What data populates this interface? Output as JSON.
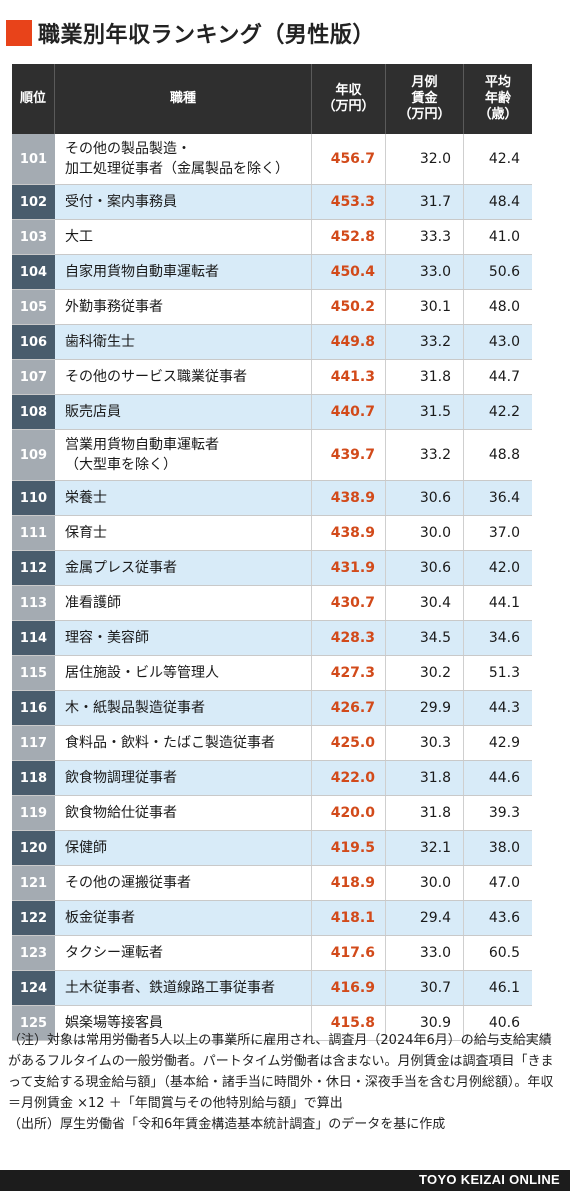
{
  "title": "職業別年収ランキング（男性版）",
  "colors": {
    "accent": "#e8431a",
    "income_text": "#d24a1a",
    "header_bg": "#2f2f2f",
    "rank_dark": "#495c6c",
    "rank_light": "#a4abb2",
    "row_tint": "#d8ebf8"
  },
  "table": {
    "headers": {
      "rank": "順位",
      "job": "職種",
      "income": "年収\n（万円）",
      "wage": "月例\n賃金\n（万円）",
      "age": "平均\n年齢\n（歳）"
    },
    "rows": [
      {
        "rank": "101",
        "job": "その他の製品製造・\n加工処理従事者（金属製品を除く）",
        "income": "456.7",
        "wage": "32.0",
        "age": "42.4"
      },
      {
        "rank": "102",
        "job": "受付・案内事務員",
        "income": "453.3",
        "wage": "31.7",
        "age": "48.4"
      },
      {
        "rank": "103",
        "job": "大工",
        "income": "452.8",
        "wage": "33.3",
        "age": "41.0"
      },
      {
        "rank": "104",
        "job": "自家用貨物自動車運転者",
        "income": "450.4",
        "wage": "33.0",
        "age": "50.6"
      },
      {
        "rank": "105",
        "job": "外勤事務従事者",
        "income": "450.2",
        "wage": "30.1",
        "age": "48.0"
      },
      {
        "rank": "106",
        "job": "歯科衛生士",
        "income": "449.8",
        "wage": "33.2",
        "age": "43.0"
      },
      {
        "rank": "107",
        "job": "その他のサービス職業従事者",
        "income": "441.3",
        "wage": "31.8",
        "age": "44.7"
      },
      {
        "rank": "108",
        "job": "販売店員",
        "income": "440.7",
        "wage": "31.5",
        "age": "42.2"
      },
      {
        "rank": "109",
        "job": "営業用貨物自動車運転者\n（大型車を除く）",
        "income": "439.7",
        "wage": "33.2",
        "age": "48.8"
      },
      {
        "rank": "110",
        "job": "栄養士",
        "income": "438.9",
        "wage": "30.6",
        "age": "36.4"
      },
      {
        "rank": "111",
        "job": "保育士",
        "income": "438.9",
        "wage": "30.0",
        "age": "37.0"
      },
      {
        "rank": "112",
        "job": "金属プレス従事者",
        "income": "431.9",
        "wage": "30.6",
        "age": "42.0"
      },
      {
        "rank": "113",
        "job": "准看護師",
        "income": "430.7",
        "wage": "30.4",
        "age": "44.1"
      },
      {
        "rank": "114",
        "job": "理容・美容師",
        "income": "428.3",
        "wage": "34.5",
        "age": "34.6"
      },
      {
        "rank": "115",
        "job": "居住施設・ビル等管理人",
        "income": "427.3",
        "wage": "30.2",
        "age": "51.3"
      },
      {
        "rank": "116",
        "job": "木・紙製品製造従事者",
        "income": "426.7",
        "wage": "29.9",
        "age": "44.3"
      },
      {
        "rank": "117",
        "job": "食料品・飲料・たばこ製造従事者",
        "income": "425.0",
        "wage": "30.3",
        "age": "42.9"
      },
      {
        "rank": "118",
        "job": "飲食物調理従事者",
        "income": "422.0",
        "wage": "31.8",
        "age": "44.6"
      },
      {
        "rank": "119",
        "job": "飲食物給仕従事者",
        "income": "420.0",
        "wage": "31.8",
        "age": "39.3"
      },
      {
        "rank": "120",
        "job": "保健師",
        "income": "419.5",
        "wage": "32.1",
        "age": "38.0"
      },
      {
        "rank": "121",
        "job": "その他の運搬従事者",
        "income": "418.9",
        "wage": "30.0",
        "age": "47.0"
      },
      {
        "rank": "122",
        "job": "板金従事者",
        "income": "418.1",
        "wage": "29.4",
        "age": "43.6"
      },
      {
        "rank": "123",
        "job": "タクシー運転者",
        "income": "417.6",
        "wage": "33.0",
        "age": "60.5"
      },
      {
        "rank": "124",
        "job": "土木従事者、鉄道線路工事従事者",
        "income": "416.9",
        "wage": "30.7",
        "age": "46.1"
      },
      {
        "rank": "125",
        "job": "娯楽場等接客員",
        "income": "415.8",
        "wage": "30.9",
        "age": "40.6"
      }
    ]
  },
  "notes": {
    "note": "（注）対象は常用労働者5人以上の事業所に雇用され、調査月（2024年6月）の給与支給実績があるフルタイムの一般労働者。パートタイム労働者は含まない。月例賃金は調査項目「きまって支給する現金給与額」（基本給・諸手当に時間外・休日・深夜手当を含む月例総額）。年収＝月例賃金 ×12 ＋「年間賞与その他特別給与額」で算出",
    "source": "（出所）厚生労働省「令和6年賃金構造基本統計調査」のデータを基に作成"
  },
  "footer": {
    "brand": "TOYO KEIZAI ONLINE"
  }
}
